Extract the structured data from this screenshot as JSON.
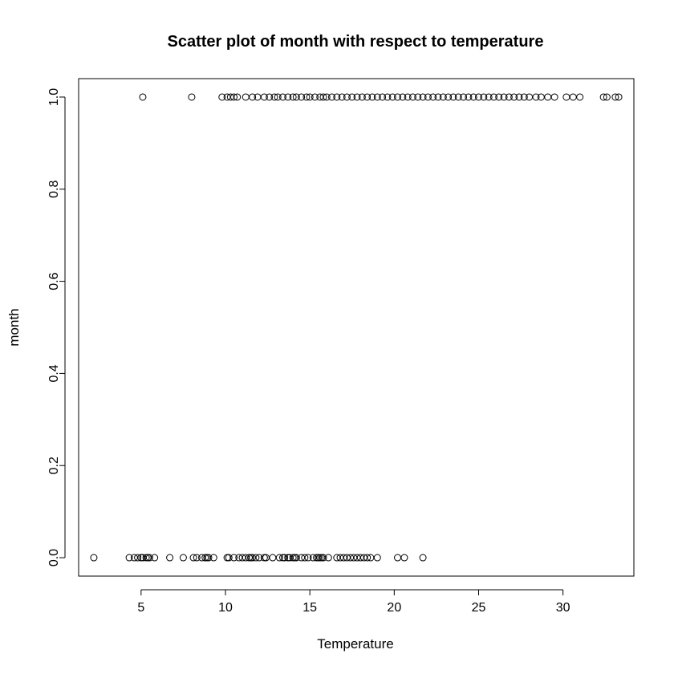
{
  "chart_data": {
    "type": "scatter",
    "title": "Scatter plot of month with respect to temperature",
    "xlabel": "Temperature",
    "ylabel": "month",
    "xlim": [
      1.3,
      34.2
    ],
    "ylim": [
      -0.04,
      1.04
    ],
    "x_ticks": [
      5,
      10,
      15,
      20,
      25,
      30
    ],
    "x_tick_labels": [
      "5",
      "10",
      "15",
      "20",
      "25",
      "30"
    ],
    "y_ticks": [
      0.0,
      0.2,
      0.4,
      0.6,
      0.8,
      1.0
    ],
    "y_tick_labels": [
      "0.0",
      "0.2",
      "0.4",
      "0.6",
      "0.8",
      "1.0"
    ],
    "grid": false,
    "marker": "open-circle",
    "series": [
      {
        "x": [
          2.2,
          4.3,
          4.6,
          4.8,
          5.0,
          5.1,
          5.3,
          5.4,
          5.5,
          5.8,
          6.7,
          7.5,
          8.1,
          8.3,
          8.6,
          8.8,
          8.9,
          9.0,
          9.3,
          10.1,
          10.2,
          10.5,
          10.8,
          11.0,
          11.2,
          11.4,
          11.5,
          11.6,
          11.8,
          12.0,
          12.3,
          12.4,
          12.8,
          13.2,
          13.4,
          13.5,
          13.7,
          13.8,
          14.0,
          14.1,
          14.2,
          14.5,
          14.7,
          14.9,
          15.2,
          15.4,
          15.5,
          15.6,
          15.7,
          15.8,
          16.1,
          16.6,
          16.8,
          17.0,
          17.2,
          17.4,
          17.6,
          17.8,
          18.0,
          18.2,
          18.4,
          18.6,
          19.0,
          20.2,
          20.6,
          21.7
        ],
        "y": [
          0,
          0,
          0,
          0,
          0,
          0,
          0,
          0,
          0,
          0,
          0,
          0,
          0,
          0,
          0,
          0,
          0,
          0,
          0,
          0,
          0,
          0,
          0,
          0,
          0,
          0,
          0,
          0,
          0,
          0,
          0,
          0,
          0,
          0,
          0,
          0,
          0,
          0,
          0,
          0,
          0,
          0,
          0,
          0,
          0,
          0,
          0,
          0,
          0,
          0,
          0,
          0,
          0,
          0,
          0,
          0,
          0,
          0,
          0,
          0,
          0,
          0,
          0,
          0,
          0,
          0
        ]
      },
      {
        "x": [
          5.1,
          8.0,
          9.8,
          10.1,
          10.3,
          10.5,
          10.7,
          11.2,
          11.6,
          11.9,
          12.3,
          12.6,
          12.9,
          13.1,
          13.4,
          13.7,
          14.0,
          14.2,
          14.5,
          14.8,
          15.0,
          15.3,
          15.6,
          15.8,
          16.0,
          16.3,
          16.6,
          16.9,
          17.2,
          17.5,
          17.8,
          18.1,
          18.4,
          18.7,
          19.0,
          19.3,
          19.6,
          19.9,
          20.2,
          20.5,
          20.8,
          21.1,
          21.4,
          21.7,
          22.0,
          22.3,
          22.6,
          22.9,
          23.2,
          23.5,
          23.8,
          24.1,
          24.4,
          24.7,
          25.0,
          25.3,
          25.6,
          25.9,
          26.2,
          26.5,
          26.8,
          27.1,
          27.4,
          27.7,
          28.0,
          28.4,
          28.7,
          29.1,
          29.5,
          30.2,
          30.6,
          31.0,
          32.4,
          32.6,
          33.1,
          33.3
        ],
        "y": [
          1,
          1,
          1,
          1,
          1,
          1,
          1,
          1,
          1,
          1,
          1,
          1,
          1,
          1,
          1,
          1,
          1,
          1,
          1,
          1,
          1,
          1,
          1,
          1,
          1,
          1,
          1,
          1,
          1,
          1,
          1,
          1,
          1,
          1,
          1,
          1,
          1,
          1,
          1,
          1,
          1,
          1,
          1,
          1,
          1,
          1,
          1,
          1,
          1,
          1,
          1,
          1,
          1,
          1,
          1,
          1,
          1,
          1,
          1,
          1,
          1,
          1,
          1,
          1,
          1,
          1,
          1,
          1,
          1,
          1,
          1,
          1,
          1,
          1,
          1,
          1
        ]
      }
    ]
  }
}
